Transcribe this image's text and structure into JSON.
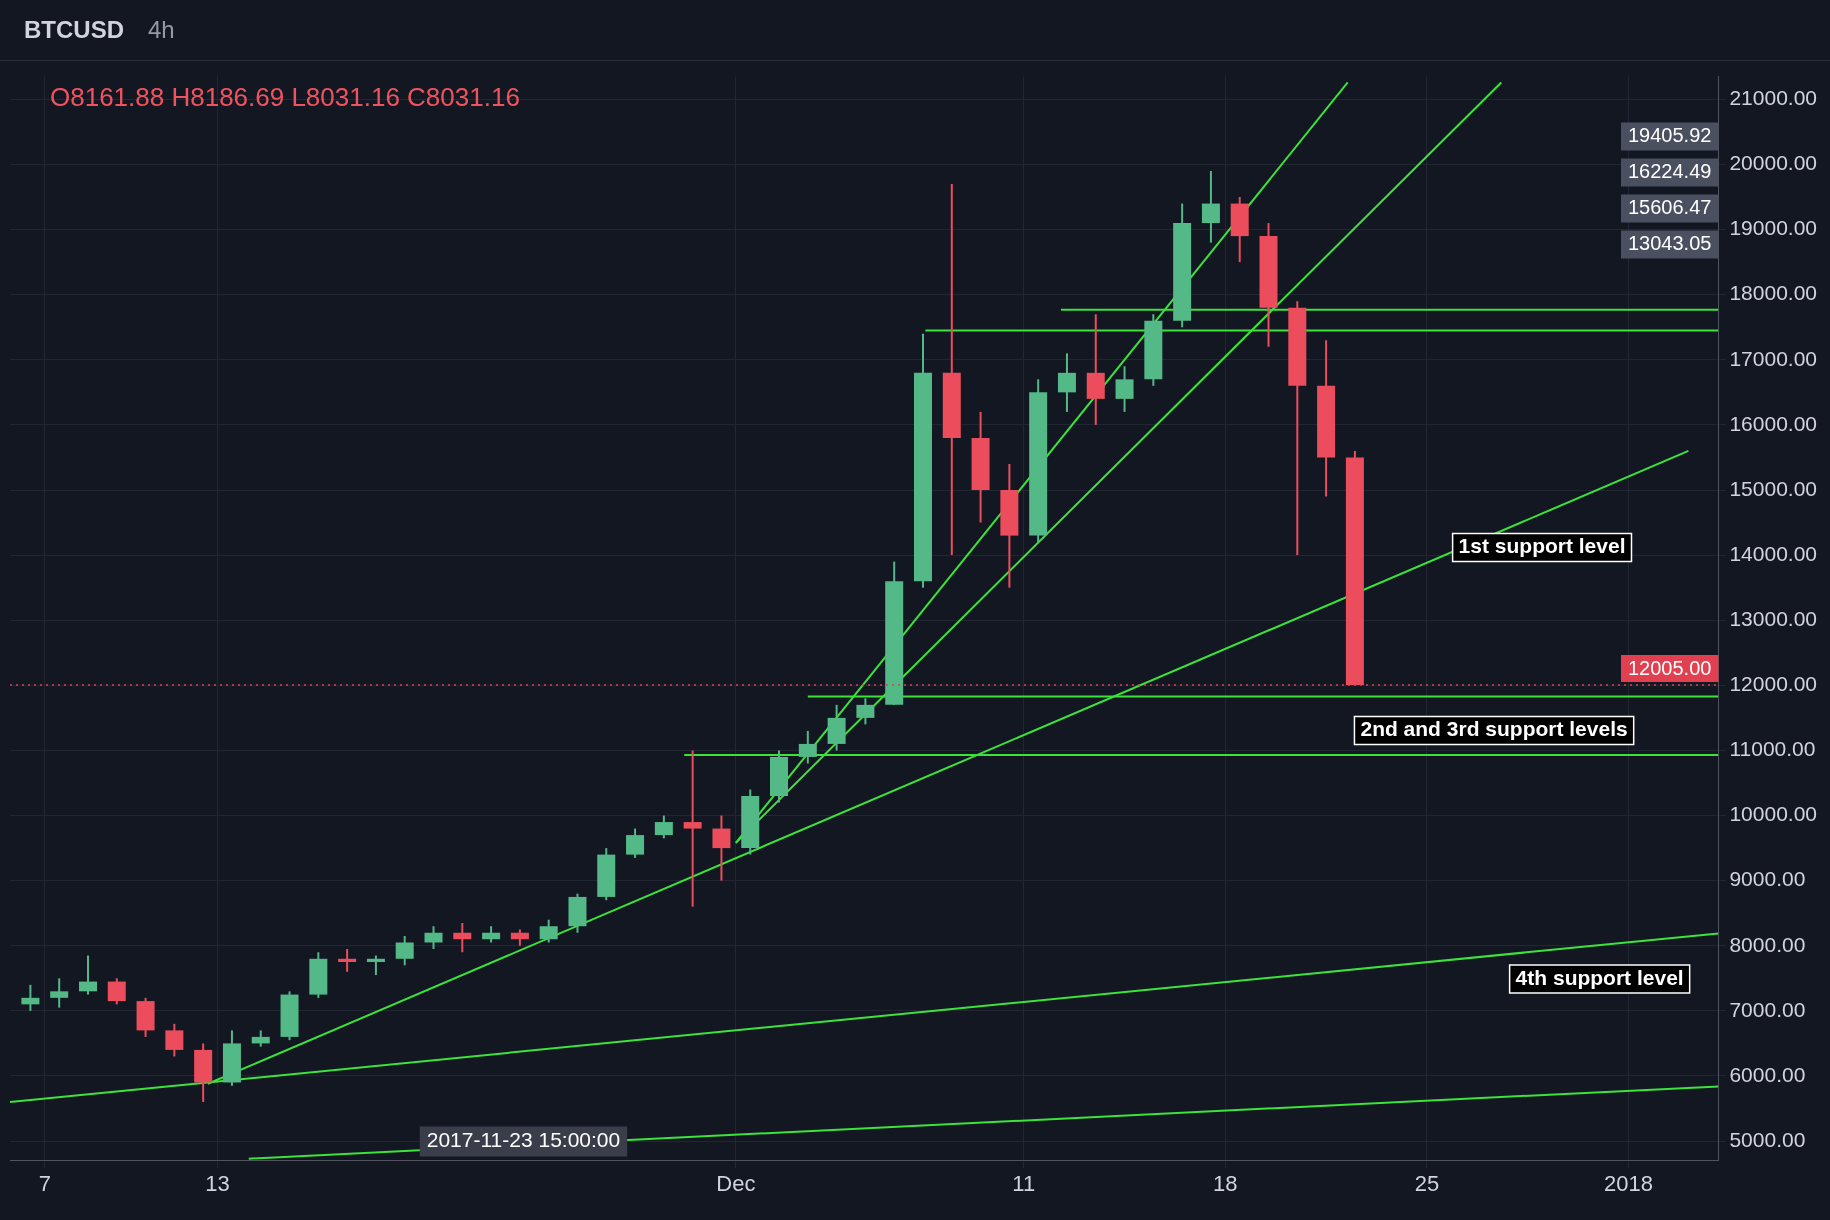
{
  "chart_data": {
    "type": "candlestick",
    "title": "BTCUSD",
    "subtitle": "4h",
    "x": [
      "2017-11-06T12:00",
      "2017-11-07T12:00",
      "2017-11-08T12:00",
      "2017-11-09T12:00",
      "2017-11-10T12:00",
      "2017-11-11T12:00",
      "2017-11-12T12:00",
      "2017-11-13T12:00",
      "2017-11-14T12:00",
      "2017-11-15T12:00",
      "2017-11-16T12:00",
      "2017-11-17T12:00",
      "2017-11-18T12:00",
      "2017-11-19T12:00",
      "2017-11-20T12:00",
      "2017-11-21T12:00",
      "2017-11-22T12:00",
      "2017-11-23T12:00",
      "2017-11-24T12:00",
      "2017-11-25T12:00",
      "2017-11-26T12:00",
      "2017-11-27T12:00",
      "2017-11-28T12:00",
      "2017-11-29T12:00",
      "2017-11-30T12:00",
      "2017-12-01T12:00",
      "2017-12-02T12:00",
      "2017-12-03T12:00",
      "2017-12-04T12:00",
      "2017-12-05T12:00",
      "2017-12-06T12:00",
      "2017-12-07T12:00",
      "2017-12-08T12:00",
      "2017-12-09T12:00",
      "2017-12-10T12:00",
      "2017-12-11T12:00",
      "2017-12-12T12:00",
      "2017-12-13T12:00",
      "2017-12-14T12:00",
      "2017-12-15T12:00",
      "2017-12-16T12:00",
      "2017-12-17T12:00",
      "2017-12-18T12:00",
      "2017-12-19T12:00",
      "2017-12-20T12:00",
      "2017-12-21T12:00",
      "2017-12-22T12:00"
    ],
    "ohlc": [
      [
        7100,
        7400,
        7000,
        7200
      ],
      [
        7200,
        7500,
        7050,
        7300
      ],
      [
        7300,
        7850,
        7250,
        7450
      ],
      [
        7450,
        7500,
        7100,
        7150
      ],
      [
        7150,
        7200,
        6600,
        6700
      ],
      [
        6700,
        6800,
        6300,
        6400
      ],
      [
        6400,
        6500,
        5600,
        5900
      ],
      [
        5900,
        6700,
        5850,
        6500
      ],
      [
        6500,
        6700,
        6450,
        6600
      ],
      [
        6600,
        7300,
        6550,
        7250
      ],
      [
        7250,
        7900,
        7200,
        7800
      ],
      [
        7800,
        7950,
        7600,
        7750
      ],
      [
        7750,
        7850,
        7550,
        7800
      ],
      [
        7800,
        8150,
        7700,
        8050
      ],
      [
        8050,
        8300,
        7950,
        8200
      ],
      [
        8200,
        8350,
        7900,
        8100
      ],
      [
        8100,
        8300,
        8050,
        8200
      ],
      [
        8200,
        8250,
        8000,
        8100
      ],
      [
        8100,
        8400,
        8050,
        8300
      ],
      [
        8300,
        8800,
        8200,
        8750
      ],
      [
        8750,
        9500,
        8700,
        9400
      ],
      [
        9400,
        9800,
        9350,
        9700
      ],
      [
        9700,
        10000,
        9650,
        9900
      ],
      [
        9900,
        11000,
        8600,
        9800
      ],
      [
        9800,
        10000,
        9000,
        9500
      ],
      [
        9500,
        10400,
        9400,
        10300
      ],
      [
        10300,
        11000,
        10200,
        10900
      ],
      [
        10900,
        11300,
        10800,
        11100
      ],
      [
        11100,
        11700,
        11000,
        11500
      ],
      [
        11500,
        11800,
        11400,
        11700
      ],
      [
        11700,
        13900,
        11700,
        13600
      ],
      [
        13600,
        17400,
        13500,
        16800
      ],
      [
        16800,
        19700,
        14000,
        15800
      ],
      [
        15800,
        16200,
        14500,
        15000
      ],
      [
        15000,
        15400,
        13500,
        14300
      ],
      [
        14300,
        16700,
        14200,
        16500
      ],
      [
        16500,
        17100,
        16200,
        16800
      ],
      [
        16800,
        17700,
        16000,
        16400
      ],
      [
        16400,
        16900,
        16200,
        16700
      ],
      [
        16700,
        17700,
        16600,
        17600
      ],
      [
        17600,
        19400,
        17500,
        19100
      ],
      [
        19100,
        19900,
        18800,
        19400
      ],
      [
        19400,
        19500,
        18500,
        18900
      ],
      [
        18900,
        19100,
        17200,
        17800
      ],
      [
        17800,
        17900,
        14000,
        16600
      ],
      [
        16600,
        17300,
        14900,
        15500
      ],
      [
        15500,
        15600,
        12000,
        12005
      ]
    ],
    "colors": [
      "#53b987",
      "#53b987",
      "#53b987",
      "#eb4d5c",
      "#eb4d5c",
      "#eb4d5c",
      "#eb4d5c",
      "#53b987",
      "#53b987",
      "#53b987",
      "#53b987",
      "#eb4d5c",
      "#53b987",
      "#53b987",
      "#53b987",
      "#eb4d5c",
      "#53b987",
      "#eb4d5c",
      "#53b987",
      "#53b987",
      "#53b987",
      "#53b987",
      "#53b987",
      "#eb4d5c",
      "#eb4d5c",
      "#53b987",
      "#53b987",
      "#53b987",
      "#53b987",
      "#53b987",
      "#53b987",
      "#53b987",
      "#eb4d5c",
      "#eb4d5c",
      "#eb4d5c",
      "#53b987",
      "#53b987",
      "#eb4d5c",
      "#53b987",
      "#53b987",
      "#53b987",
      "#53b987",
      "#eb4d5c",
      "#eb4d5c",
      "#eb4d5c",
      "#eb4d5c",
      "#eb4d5c"
    ],
    "series": [
      {
        "type": "line",
        "color": "#3be33b",
        "x": [
          "2017-12-01T00:00",
          "2017-12-22T06:00"
        ],
        "values": [
          9580,
          21260
        ]
      },
      {
        "type": "line",
        "color": "#3be33b",
        "x": [
          "2017-12-01T00:00",
          "2017-12-27T14:00"
        ],
        "values": [
          9580,
          21260
        ]
      },
      {
        "type": "line",
        "color": "#3be33b",
        "x": [
          "2017-11-12T16:00",
          "2018-01-03T02:00"
        ],
        "values": [
          5880,
          15600
        ]
      },
      {
        "type": "line",
        "color": "#3be33b",
        "x": [
          "2017-11-05T19:00",
          "2018-01-04T03:00"
        ],
        "values": [
          5600,
          8190
        ]
      },
      {
        "type": "line",
        "color": "#3be33b",
        "x": [
          "2017-11-14T02:00",
          "2018-01-04T03:00"
        ],
        "values": [
          4730,
          5840
        ]
      },
      {
        "type": "line",
        "color": "#3be33b",
        "x": [
          "2017-12-12T07:00",
          "2018-01-04T03:00"
        ],
        "values": [
          17770,
          17770
        ]
      },
      {
        "type": "line",
        "color": "#3be33b",
        "x": [
          "2017-12-07T14:00",
          "2018-01-04T03:00"
        ],
        "values": [
          17450,
          17450
        ]
      },
      {
        "type": "line",
        "color": "#3be33b",
        "x": [
          "2017-12-03T12:00",
          "2018-01-04T03:00"
        ],
        "values": [
          11830,
          11830
        ]
      },
      {
        "type": "line",
        "color": "#3be33b",
        "x": [
          "2017-11-29T05:00",
          "2018-01-04T03:00"
        ],
        "values": [
          10930,
          10930
        ]
      }
    ],
    "xlim": [
      "2017-11-05T19:00",
      "2018-01-04T03:00"
    ],
    "xticks": [
      {
        "value": "2017-11-07",
        "label": "7"
      },
      {
        "value": "2017-11-13",
        "label": "13"
      },
      {
        "value": "2017-12-01",
        "label": "Dec"
      },
      {
        "value": "2017-12-11",
        "label": "11"
      },
      {
        "value": "2017-12-18",
        "label": "18"
      },
      {
        "value": "2017-12-25",
        "label": "25"
      },
      {
        "value": "2018-01-01",
        "label": "2018"
      }
    ],
    "ylim": [
      4700,
      21350
    ],
    "yticks": [
      {
        "value": 5000,
        "label": "5000.00"
      },
      {
        "value": 6000,
        "label": "6000.00"
      },
      {
        "value": 7000,
        "label": "7000.00"
      },
      {
        "value": 8000,
        "label": "8000.00"
      },
      {
        "value": 9000,
        "label": "9000.00"
      },
      {
        "value": 10000,
        "label": "10000.00"
      },
      {
        "value": 11000,
        "label": "11000.00"
      },
      {
        "value": 12000,
        "label": "12000.00"
      },
      {
        "value": 13000,
        "label": "13000.00"
      },
      {
        "value": 14000,
        "label": "14000.00"
      },
      {
        "value": 15000,
        "label": "15000.00"
      },
      {
        "value": 16000,
        "label": "16000.00"
      },
      {
        "value": 17000,
        "label": "17000.00"
      },
      {
        "value": 18000,
        "label": "18000.00"
      },
      {
        "value": 19000,
        "label": "19000.00"
      },
      {
        "value": 20000,
        "label": "20000.00"
      },
      {
        "value": 21000,
        "label": "21000.00"
      }
    ],
    "grid": true,
    "ref_lines": [
      {
        "axis": "y",
        "value": 12005,
        "label": "12005.00",
        "color": "#e04050",
        "line_style": "dotted"
      }
    ],
    "annotations": [
      "O8161.88 H8186.69 L8031.16 C8031.16",
      {
        "text": "1st support level",
        "x": "2017-12-29T00:00",
        "y": 14640
      },
      {
        "text": "2nd and 3rd support levels",
        "x": "2017-12-27T08:00",
        "y": 11830
      },
      {
        "text": "4th support level",
        "x": "2017-12-31T00:00",
        "y": 8010
      },
      "19405.92",
      "16224.49",
      "15606.47",
      "13043.05",
      {
        "text": "2017-11-23 15:00:00",
        "x": "2017-11-23T15:00"
      }
    ]
  }
}
